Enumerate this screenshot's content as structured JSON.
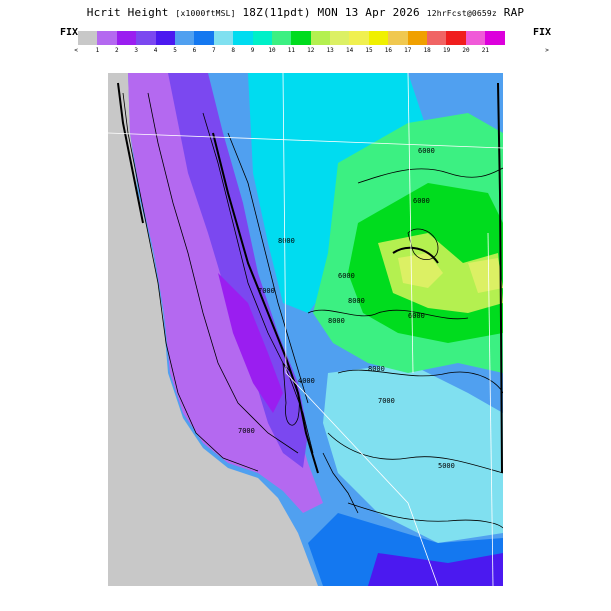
{
  "header": {
    "variable": "Hcrit Height",
    "units": "[x1000ftMSL]",
    "valid": "18Z(11pdt) MON 13 Apr 2026",
    "forecast": "12hrFcst@0659z",
    "model": "RAP"
  },
  "legend": {
    "fix_left": "FIX",
    "fix_right": "FIX",
    "less_symbol": "<",
    "greater_symbol": ">",
    "ticks": [
      "1",
      "2",
      "3",
      "4",
      "5",
      "6",
      "7",
      "8",
      "9",
      "10",
      "11",
      "12",
      "13",
      "14",
      "15",
      "16",
      "17",
      "18",
      "19",
      "20",
      "21"
    ],
    "colors": [
      "#c8c8c8",
      "#b469f0",
      "#9a1ef0",
      "#7b48f0",
      "#4b19f0",
      "#50a0f0",
      "#1478f0",
      "#80e0f0",
      "#00dcf0",
      "#00f0c8",
      "#3cf082",
      "#00dc1e",
      "#b4f050",
      "#dcf064",
      "#f0f050",
      "#f0f000",
      "#f0c850",
      "#f0a000",
      "#f06464",
      "#f01e1e",
      "#f05ad8",
      "#dc00dc"
    ]
  },
  "map": {
    "contour_labels": [
      "6000",
      "6000",
      "6000",
      "6000",
      "8000",
      "8000",
      "7000",
      "8000",
      "7000",
      "4000",
      "7000",
      "8000",
      "5000"
    ]
  }
}
